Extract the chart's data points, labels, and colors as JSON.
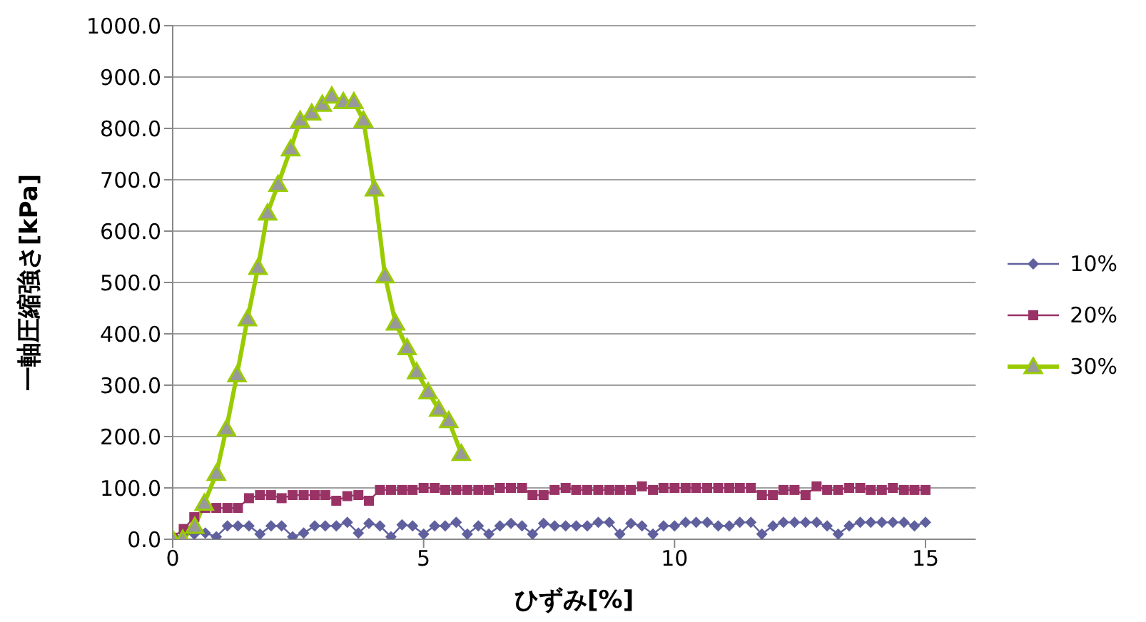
{
  "chart_data": {
    "type": "line",
    "xlabel": "ひずみ[%]",
    "ylabel": "一軸圧縮強さ[kPa]",
    "x": [
      0,
      0.22,
      0.43,
      0.65,
      0.87,
      1.09,
      1.3,
      1.52,
      1.74,
      1.96,
      2.17,
      2.39,
      2.61,
      2.83,
      3.04,
      3.26,
      3.48,
      3.7,
      3.91,
      4.13,
      4.35,
      4.57,
      4.78,
      5.0,
      5.22,
      5.43,
      5.65,
      5.87,
      6.09,
      6.3,
      6.52,
      6.74,
      6.96,
      7.17,
      7.39,
      7.61,
      7.83,
      8.04,
      8.26,
      8.48,
      8.7,
      8.91,
      9.13,
      9.35,
      9.57,
      9.78,
      10.0,
      10.22,
      10.43,
      10.65,
      10.87,
      11.09,
      11.3,
      11.52,
      11.74,
      11.96,
      12.17,
      12.39,
      12.61,
      12.83,
      13.04,
      13.26,
      13.48,
      13.7,
      13.91,
      14.13,
      14.35,
      14.57,
      14.78,
      15.0
    ],
    "series": [
      {
        "name": "10%",
        "color": "#60609e",
        "marker": "diamond",
        "values": [
          0,
          12,
          10,
          12,
          5,
          26,
          26,
          26,
          10,
          26,
          26,
          5,
          12,
          26,
          26,
          26,
          33,
          12,
          31,
          26,
          5,
          28,
          26,
          10,
          26,
          26,
          33,
          10,
          26,
          10,
          26,
          31,
          26,
          10,
          31,
          26,
          26,
          26,
          26,
          33,
          33,
          10,
          31,
          26,
          10,
          26,
          26,
          33,
          33,
          33,
          26,
          26,
          33,
          33,
          10,
          26,
          33,
          33,
          33,
          33,
          26,
          10,
          26,
          33,
          33,
          33,
          33,
          33,
          26,
          33
        ]
      },
      {
        "name": "20%",
        "color": "#993366",
        "marker": "square",
        "values": [
          3,
          20,
          43,
          61,
          61,
          61,
          61,
          80,
          86,
          86,
          80,
          86,
          86,
          86,
          86,
          75,
          84,
          86,
          75,
          96,
          96,
          96,
          96,
          100,
          100,
          96,
          96,
          96,
          96,
          96,
          100,
          100,
          100,
          86,
          86,
          96,
          100,
          96,
          96,
          96,
          96,
          96,
          96,
          103,
          96,
          100,
          100,
          100,
          100,
          100,
          100,
          100,
          100,
          100,
          86,
          86,
          96,
          96,
          86,
          103,
          96,
          96,
          100,
          100,
          96,
          96,
          100,
          96,
          96,
          96
        ]
      },
      {
        "name": "30%",
        "color": "#99cc00",
        "marker": "triangle",
        "x": [
          0,
          0.2,
          0.44,
          0.63,
          0.87,
          1.07,
          1.28,
          1.49,
          1.7,
          1.89,
          2.1,
          2.35,
          2.54,
          2.77,
          2.98,
          3.17,
          3.4,
          3.61,
          3.8,
          4.02,
          4.23,
          4.44,
          4.67,
          4.86,
          5.09,
          5.3,
          5.5,
          5.75
        ],
        "values": [
          0,
          0,
          25,
          70,
          128,
          215,
          320,
          429,
          529,
          635,
          691,
          760,
          816,
          830,
          847,
          863,
          852,
          852,
          816,
          682,
          513,
          421,
          373,
          326,
          287,
          253,
          231,
          167
        ]
      }
    ],
    "xlim": [
      0,
      16
    ],
    "xticks": [
      0,
      5,
      10,
      15
    ],
    "ylim": [
      0,
      1000
    ],
    "yticks": [
      {
        "value": 0,
        "label": "0.0"
      },
      {
        "value": 100,
        "label": "100.0"
      },
      {
        "value": 200,
        "label": "200.0"
      },
      {
        "value": 300,
        "label": "300.0"
      },
      {
        "value": 400,
        "label": "400.0"
      },
      {
        "value": 500,
        "label": "500.0"
      },
      {
        "value": 600,
        "label": "600.0"
      },
      {
        "value": 700,
        "label": "700.0"
      },
      {
        "value": 800,
        "label": "800.0"
      },
      {
        "value": 900,
        "label": "900.0"
      },
      {
        "value": 1000,
        "label": "1000.0"
      }
    ],
    "grid": "y",
    "legend": "right"
  }
}
